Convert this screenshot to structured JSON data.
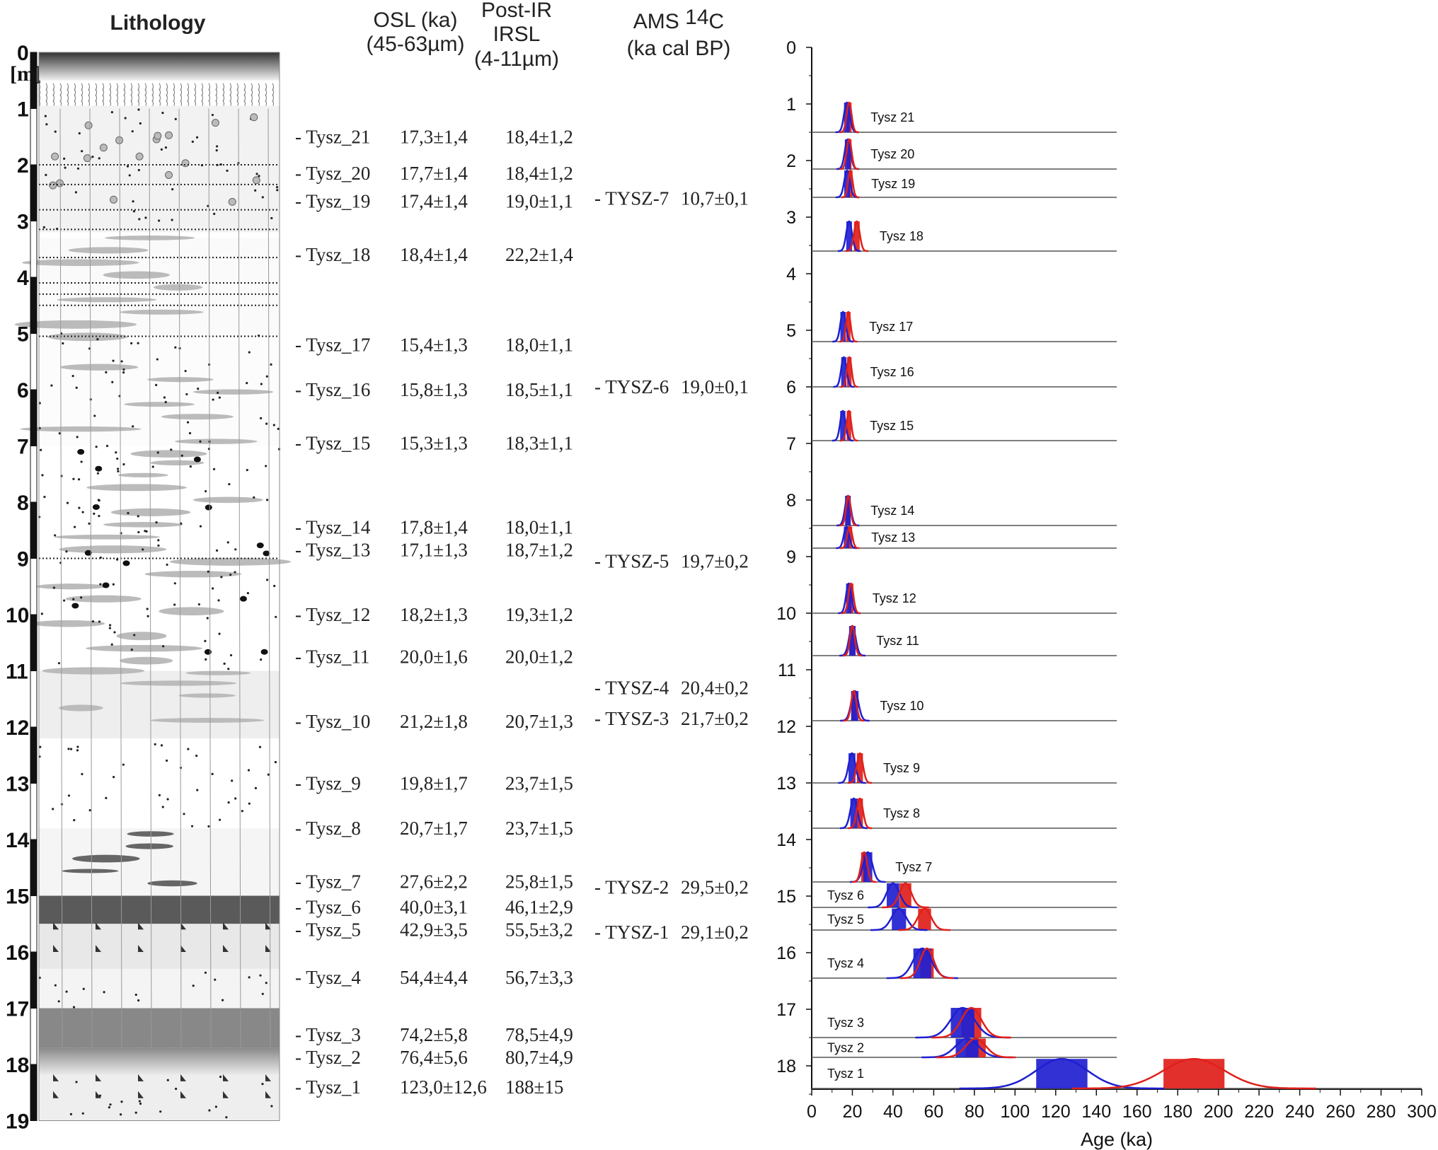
{
  "headers": {
    "lithology": "Lithology",
    "osl": [
      "OSL (ka)",
      "(45-63µm)"
    ],
    "irsl": [
      "Post-IR",
      "IRSL",
      "(4-11µm)"
    ],
    "ams": {
      "line1": "AMS ",
      "sup": "14",
      "c": "C",
      "line2": "(ka cal BP)"
    }
  },
  "leader": "-",
  "depth_axis": {
    "unit": "[m]",
    "ticks": [
      0,
      1,
      2,
      3,
      4,
      5,
      6,
      7,
      8,
      9,
      10,
      11,
      12,
      13,
      14,
      15,
      16,
      17,
      18,
      19
    ]
  },
  "samples": [
    {
      "name": "Tysz_21",
      "osl": "17,3±1,4",
      "irsl": "18,4±1,2",
      "depth_m": 1.5
    },
    {
      "name": "Tysz_20",
      "osl": "17,7±1,4",
      "irsl": "18,4±1,2",
      "depth_m": 2.15
    },
    {
      "name": "Tysz_19",
      "osl": "17,4±1,4",
      "irsl": "19,0±1,1",
      "depth_m": 2.65
    },
    {
      "name": "Tysz_18",
      "osl": "18,4±1,4",
      "irsl": "22,2±1,4",
      "depth_m": 3.6
    },
    {
      "name": "Tysz_17",
      "osl": "15,4±1,3",
      "irsl": "18,0±1,1",
      "depth_m": 5.2
    },
    {
      "name": "Tysz_16",
      "osl": "15,8±1,3",
      "irsl": "18,5±1,1",
      "depth_m": 6.0
    },
    {
      "name": "Tysz_15",
      "osl": "15,3±1,3",
      "irsl": "18,3±1,1",
      "depth_m": 6.95
    },
    {
      "name": "Tysz_14",
      "osl": "17,8±1,4",
      "irsl": "18,0±1,1",
      "depth_m": 8.45
    },
    {
      "name": "Tysz_13",
      "osl": "17,1±1,3",
      "irsl": "18,7±1,2",
      "depth_m": 8.85
    },
    {
      "name": "Tysz_12",
      "osl": "18,2±1,3",
      "irsl": "19,3±1,2",
      "depth_m": 10.0
    },
    {
      "name": "Tysz_11",
      "osl": "20,0±1,6",
      "irsl": "20,0±1,2",
      "depth_m": 10.75
    },
    {
      "name": "Tysz_10",
      "osl": "21,2±1,8",
      "irsl": "20,7±1,3",
      "depth_m": 11.9
    },
    {
      "name": "Tysz_9",
      "osl": "19,8±1,7",
      "irsl": "23,7±1,5",
      "depth_m": 13.0
    },
    {
      "name": "Tysz_8",
      "osl": "20,7±1,7",
      "irsl": "23,7±1,5",
      "depth_m": 13.8
    },
    {
      "name": "Tysz_7",
      "osl": "27,6±2,2",
      "irsl": "25,8±1,5",
      "depth_m": 14.75
    },
    {
      "name": "Tysz_6",
      "osl": "40,0±3,1",
      "irsl": "46,1±2,9",
      "depth_m": 15.2
    },
    {
      "name": "Tysz_5",
      "osl": "42,9±3,5",
      "irsl": "55,5±3,2",
      "depth_m": 15.6
    },
    {
      "name": "Tysz_4",
      "osl": "54,4±4,4",
      "irsl": "56,7±3,3",
      "depth_m": 16.45
    },
    {
      "name": "Tysz_3",
      "osl": "74,2±5,8",
      "irsl": "78,5±4,9",
      "depth_m": 17.5
    },
    {
      "name": "Tysz_2",
      "osl": "76,4±5,6",
      "irsl": "80,7±4,9",
      "depth_m": 17.85
    },
    {
      "name": "Tysz_1",
      "osl": "123,0±12,6",
      "irsl": "188±15",
      "depth_m": 18.4
    }
  ],
  "ams": [
    {
      "name": "TYSZ-7",
      "value": "10,7±0,1",
      "depth_m": 2.6
    },
    {
      "name": "TYSZ-6",
      "value": "19,0±0,1",
      "depth_m": 5.95
    },
    {
      "name": "TYSZ-5",
      "value": "19,7±0,2",
      "depth_m": 9.05
    },
    {
      "name": "TYSZ-4",
      "value": "20,4±0,2",
      "depth_m": 11.3
    },
    {
      "name": "TYSZ-3",
      "value": "21,7±0,2",
      "depth_m": 11.85
    },
    {
      "name": "TYSZ-2",
      "value": "29,5±0,2",
      "depth_m": 14.85
    },
    {
      "name": "TYSZ-1",
      "value": "29,1±0,2",
      "depth_m": 15.65
    }
  ],
  "chart_data": {
    "type": "line",
    "title": "",
    "xlabel": "Age (ka)",
    "ylabel": "",
    "xlim": [
      0,
      300
    ],
    "xticks": [
      0,
      20,
      40,
      60,
      80,
      100,
      120,
      140,
      160,
      180,
      200,
      220,
      240,
      260,
      280,
      300
    ],
    "ylim": [
      0,
      18.5
    ],
    "yticks": [
      0,
      1,
      2,
      3,
      4,
      5,
      6,
      7,
      8,
      9,
      10,
      11,
      12,
      13,
      14,
      15,
      16,
      17,
      18
    ],
    "y_inverted": true,
    "grid": false,
    "colors": {
      "osl": "#1f1fd0",
      "irsl": "#e0201a",
      "baseline": "#555555"
    },
    "description_of_marks": "Gaussian age distributions with mean±1σ boxes per sample",
    "panels": [
      {
        "label": "Tysz 21",
        "depth": 1.5,
        "osl": [
          17.3,
          1.4
        ],
        "irsl": [
          18.4,
          1.2
        ]
      },
      {
        "label": "Tysz 20",
        "depth": 2.15,
        "osl": [
          17.7,
          1.4
        ],
        "irsl": [
          18.4,
          1.2
        ]
      },
      {
        "label": "Tysz 19",
        "depth": 2.65,
        "osl": [
          17.4,
          1.4
        ],
        "irsl": [
          19.0,
          1.1
        ]
      },
      {
        "label": "Tysz 18",
        "depth": 3.6,
        "osl": [
          18.4,
          1.4
        ],
        "irsl": [
          22.2,
          1.4
        ]
      },
      {
        "label": "Tysz 17",
        "depth": 5.2,
        "osl": [
          15.4,
          1.3
        ],
        "irsl": [
          18.0,
          1.1
        ]
      },
      {
        "label": "Tysz 16",
        "depth": 6.0,
        "osl": [
          15.8,
          1.3
        ],
        "irsl": [
          18.5,
          1.1
        ]
      },
      {
        "label": "Tysz 15",
        "depth": 6.95,
        "osl": [
          15.3,
          1.3
        ],
        "irsl": [
          18.3,
          1.1
        ]
      },
      {
        "label": "Tysz 14",
        "depth": 8.45,
        "osl": [
          17.8,
          1.4
        ],
        "irsl": [
          18.0,
          1.1
        ]
      },
      {
        "label": "Tysz 13",
        "depth": 8.85,
        "osl": [
          17.1,
          1.3
        ],
        "irsl": [
          18.7,
          1.2
        ]
      },
      {
        "label": "Tysz 12",
        "depth": 10.0,
        "osl": [
          18.2,
          1.3
        ],
        "irsl": [
          19.3,
          1.2
        ]
      },
      {
        "label": "Tysz 11",
        "depth": 10.75,
        "osl": [
          20.0,
          1.6
        ],
        "irsl": [
          20.0,
          1.2
        ]
      },
      {
        "label": "Tysz 10",
        "depth": 11.9,
        "osl": [
          21.2,
          1.8
        ],
        "irsl": [
          20.7,
          1.3
        ]
      },
      {
        "label": "Tysz 9",
        "depth": 13.0,
        "osl": [
          19.8,
          1.7
        ],
        "irsl": [
          23.7,
          1.5
        ]
      },
      {
        "label": "Tysz 8",
        "depth": 13.8,
        "osl": [
          20.7,
          1.7
        ],
        "irsl": [
          23.7,
          1.5
        ]
      },
      {
        "label": "Tysz 7",
        "depth": 14.75,
        "osl": [
          27.6,
          2.2
        ],
        "irsl": [
          25.8,
          1.5
        ]
      },
      {
        "label": "Tysz 6",
        "depth": 15.2,
        "osl": [
          40.0,
          3.1
        ],
        "irsl": [
          46.1,
          2.9
        ]
      },
      {
        "label": "Tysz 5",
        "depth": 15.6,
        "osl": [
          42.9,
          3.5
        ],
        "irsl": [
          55.5,
          3.2
        ]
      },
      {
        "label": "Tysz 4",
        "depth": 16.45,
        "osl": [
          54.4,
          4.4
        ],
        "irsl": [
          56.7,
          3.3
        ]
      },
      {
        "label": "Tysz 3",
        "depth": 17.5,
        "osl": [
          74.2,
          5.8
        ],
        "irsl": [
          78.5,
          4.9
        ]
      },
      {
        "label": "Tysz 2",
        "depth": 17.85,
        "osl": [
          76.4,
          5.6
        ],
        "irsl": [
          80.7,
          4.9
        ]
      },
      {
        "label": "Tysz 1",
        "depth": 18.4,
        "osl": [
          123.0,
          12.6
        ],
        "irsl": [
          188,
          15
        ]
      }
    ]
  }
}
